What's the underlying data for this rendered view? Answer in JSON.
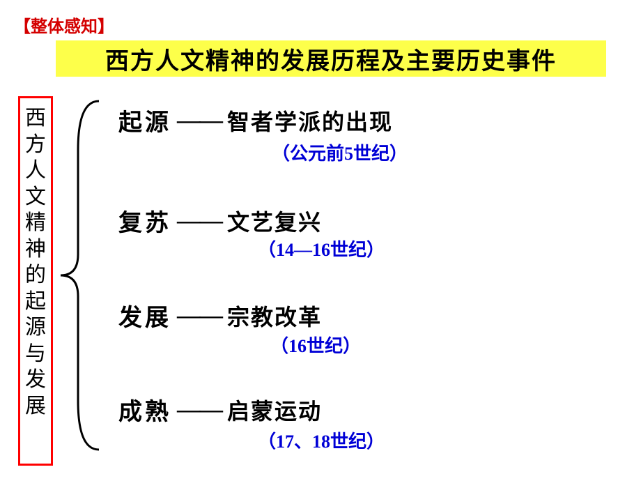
{
  "header": {
    "note": "【整体感知】",
    "note_color": "#d40000",
    "note_fontsize": 24
  },
  "title": {
    "text": "西方人文精神的发展历程及主要历史事件",
    "bg_color": "#fdff4a",
    "text_color": "#000000",
    "fontsize": 34
  },
  "vertical_label": {
    "text": "西方人文精神的起源与发展",
    "text_color": "#000000",
    "border_color": "#ff0000",
    "fontsize": 30
  },
  "brace": {
    "stroke_color": "#000000",
    "stroke_width": 3
  },
  "stages": [
    {
      "label": "起源",
      "event": "智者学派的出现",
      "date": "（公元前5世纪）",
      "label_color": "#000000",
      "event_color": "#000000",
      "date_color": "#0000d6",
      "label_fontsize": 34,
      "event_fontsize": 32,
      "date_fontsize": 26,
      "dash": "——"
    },
    {
      "label": "复苏",
      "event": "文艺复兴",
      "date": "（14—16世纪）",
      "label_color": "#000000",
      "event_color": "#000000",
      "date_color": "#0000d6",
      "label_fontsize": 34,
      "event_fontsize": 32,
      "date_fontsize": 26,
      "dash": "——"
    },
    {
      "label": "发展",
      "event": "宗教改革",
      "date": "（16世纪）",
      "label_color": "#000000",
      "event_color": "#000000",
      "date_color": "#0000d6",
      "label_fontsize": 34,
      "event_fontsize": 32,
      "date_fontsize": 26,
      "dash": "——"
    },
    {
      "label": "成熟",
      "event": "启蒙运动",
      "date": "（17、18世纪）",
      "label_color": "#000000",
      "event_color": "#000000",
      "date_color": "#0000d6",
      "label_fontsize": 34,
      "event_fontsize": 32,
      "date_fontsize": 26,
      "dash": "——"
    }
  ]
}
